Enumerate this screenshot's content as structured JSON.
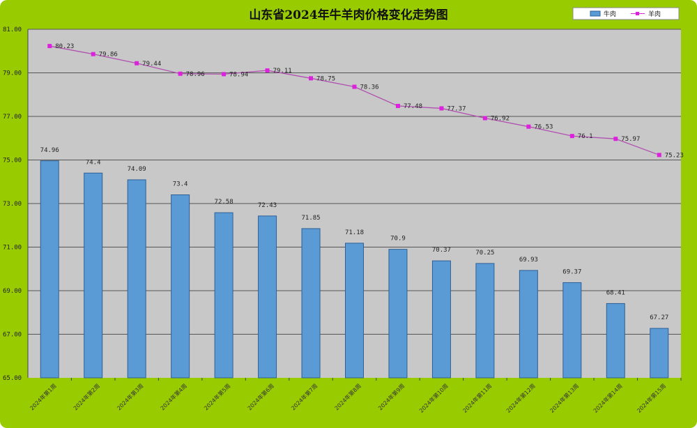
{
  "chart_data": {
    "type": "bar+line",
    "title": "山东省2024年牛羊肉价格变化走势图",
    "categories": [
      "2024年第1周",
      "2024年第2周",
      "2024年第3周",
      "2024年第4周",
      "2024年第5周",
      "2024年第6周",
      "2024年第7周",
      "2024年第8周",
      "2024年第9周",
      "2024年第10周",
      "2024年第11周",
      "2024年第12周",
      "2024年第13周",
      "2024年第14周",
      "2024年第15周"
    ],
    "series": [
      {
        "name": "牛肉",
        "type": "bar",
        "color": "#5b9bd5",
        "values": [
          74.96,
          74.4,
          74.09,
          73.4,
          72.58,
          72.43,
          71.85,
          71.18,
          70.9,
          70.37,
          70.25,
          69.93,
          69.37,
          68.41,
          67.27
        ]
      },
      {
        "name": "羊肉",
        "type": "line",
        "color": "#dd22dd",
        "values": [
          80.23,
          79.86,
          79.44,
          78.96,
          78.94,
          79.11,
          78.75,
          78.36,
          77.48,
          77.37,
          76.92,
          76.53,
          76.1,
          75.97,
          75.23
        ]
      }
    ],
    "ylim": [
      65,
      81
    ],
    "yticks": [
      "65.00",
      "67.00",
      "69.00",
      "71.00",
      "73.00",
      "75.00",
      "77.00",
      "79.00",
      "81.00"
    ],
    "grid": true,
    "legend": "top-right",
    "colors": {
      "background": "#99cc00",
      "plot": "#c8c8c8",
      "grid": "#555555"
    }
  }
}
